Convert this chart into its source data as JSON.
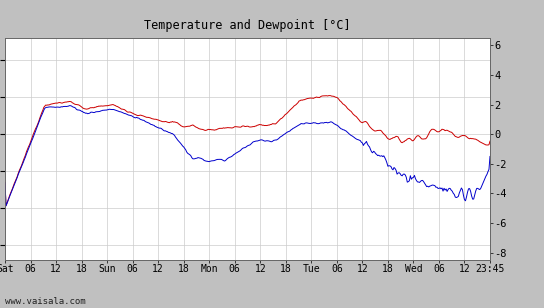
{
  "title": "Temperature and Dewpoint [°C]",
  "ylabel_right_ticks": [
    -8,
    -6,
    -4,
    -2,
    0,
    2,
    4,
    6
  ],
  "ylim": [
    -8.5,
    6.5
  ],
  "background_color": "#c0c0c0",
  "plot_bg_color": "#ffffff",
  "grid_color": "#cccccc",
  "temp_color": "#cc0000",
  "dew_color": "#0000cc",
  "watermark": "www.vaisala.com",
  "x_tick_labels": [
    "Sat",
    "06",
    "12",
    "18",
    "Sun",
    "06",
    "12",
    "18",
    "Mon",
    "06",
    "12",
    "18",
    "Tue",
    "06",
    "12",
    "18",
    "Wed",
    "06",
    "12",
    "23:45"
  ],
  "x_tick_positions": [
    0,
    25,
    50,
    75,
    100,
    125,
    150,
    175,
    200,
    225,
    250,
    275,
    300,
    325,
    350,
    375,
    400,
    425,
    450,
    475
  ],
  "xlim": [
    0,
    475
  ],
  "figsize": [
    5.44,
    3.08
  ],
  "dpi": 100
}
